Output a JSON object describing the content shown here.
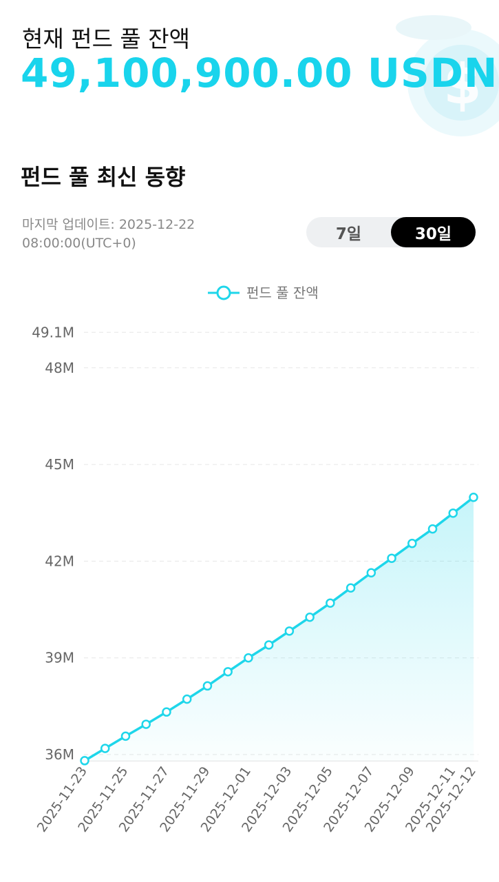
{
  "header": {
    "title": "현재 펀드 풀 잔액",
    "balance": "49,100,900.00 USDN"
  },
  "section": {
    "title": "펀드 풀 최신 동향",
    "updated": [
      "마지막 업데이트: 2025-12-22",
      "08:00:00(UTC+0)"
    ],
    "tabs": [
      "7일",
      "30일"
    ],
    "active_tab": 1
  },
  "chart_data": {
    "type": "line",
    "area": true,
    "grid": true,
    "categories": [
      "2025-11-23",
      null,
      "2025-11-25",
      null,
      "2025-11-27",
      null,
      "2025-11-29",
      null,
      "2025-12-01",
      null,
      "2025-12-03",
      null,
      "2025-12-05",
      null,
      "2025-12-07",
      null,
      "2025-12-09",
      null,
      "2025-12-11",
      "2025-12-12"
    ],
    "series": [
      {
        "name": "펀드 풀 잔액",
        "color": "#1ed6ea",
        "values": [
          35810000,
          36190000,
          36570000,
          36940000,
          37320000,
          37720000,
          38130000,
          38570000,
          39000000,
          39400000,
          39830000,
          40260000,
          40700000,
          41170000,
          41640000,
          42090000,
          42550000,
          43000000,
          43490000,
          43980000
        ]
      }
    ],
    "ylim": [
      35800000,
      49100000
    ],
    "yticks": [
      {
        "value": 36000000,
        "label": "36M"
      },
      {
        "value": 39000000,
        "label": "39M"
      },
      {
        "value": 42000000,
        "label": "42M"
      },
      {
        "value": 45000000,
        "label": "45M"
      },
      {
        "value": 48000000,
        "label": "48M"
      },
      {
        "value": 49100000,
        "label": "49.1M"
      }
    ]
  }
}
